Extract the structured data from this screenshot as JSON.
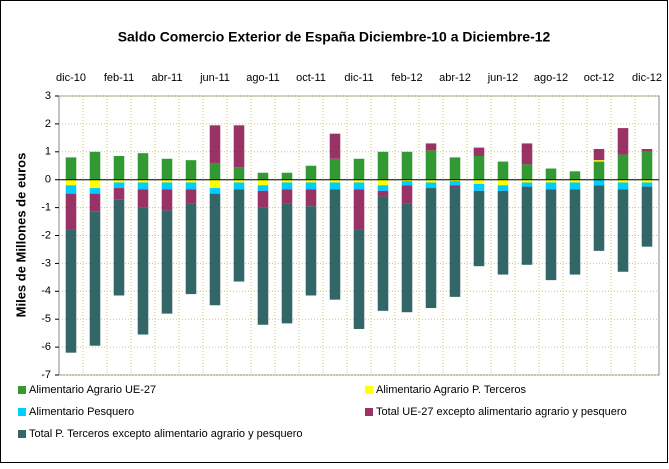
{
  "chart_data": {
    "type": "stacked_bar",
    "title": "Saldo Comercio Exterior de España Diciembre-10 a Diciembre-12",
    "y_label": "Miles de Millones de euros",
    "categories": [
      "dic-10",
      null,
      "feb-11",
      null,
      "abr-11",
      null,
      "jun-11",
      null,
      "ago-11",
      null,
      "oct-11",
      null,
      "dic-11",
      null,
      "feb-12",
      null,
      "abr-12",
      null,
      "jun-12",
      null,
      "ago-12",
      null,
      "oct-12",
      null,
      "dic-12"
    ],
    "series": [
      {
        "name": "Alimentario Agrario UE-27",
        "color": "#339933",
        "values": [
          0.8,
          1.0,
          0.85,
          0.95,
          0.75,
          0.7,
          0.6,
          0.45,
          0.25,
          0.25,
          0.5,
          0.75,
          0.75,
          1.0,
          1.0,
          1.05,
          0.8,
          0.85,
          0.65,
          0.55,
          0.4,
          0.3,
          0.65,
          0.9,
          1.0
        ]
      },
      {
        "name": "Alimentario Agrario P. Terceros",
        "color": "#ffff00",
        "values": [
          -0.2,
          -0.3,
          -0.1,
          -0.1,
          -0.1,
          -0.1,
          -0.3,
          -0.1,
          -0.2,
          -0.1,
          -0.1,
          -0.1,
          -0.1,
          -0.2,
          -0.05,
          -0.1,
          -0.05,
          -0.15,
          -0.2,
          -0.1,
          -0.1,
          -0.1,
          0.05,
          -0.1,
          -0.1
        ]
      },
      {
        "name": "Alimentario Pesquero",
        "color": "#00ccff",
        "values": [
          -0.3,
          -0.2,
          -0.2,
          -0.25,
          -0.25,
          -0.25,
          -0.2,
          -0.25,
          -0.2,
          -0.25,
          -0.25,
          -0.25,
          -0.25,
          -0.2,
          -0.15,
          -0.2,
          -0.15,
          -0.25,
          -0.2,
          -0.15,
          -0.25,
          -0.25,
          -0.2,
          -0.25,
          -0.15
        ]
      },
      {
        "name": "Total UE-27 excepto alimentario agrario y pesquero",
        "color": "#993366",
        "values": [
          -1.3,
          -0.65,
          -0.4,
          -0.65,
          -0.75,
          -0.5,
          1.35,
          1.5,
          -0.6,
          -0.5,
          -0.6,
          0.9,
          -1.45,
          -0.2,
          -0.65,
          0.25,
          -0.1,
          0.3,
          0,
          0.75,
          0,
          0,
          0.4,
          0.95,
          0.1
        ]
      },
      {
        "name": "Total P. Terceros excepto alimentario agrario y pesquero",
        "color": "#336666",
        "values": [
          -4.4,
          -4.8,
          -3.45,
          -4.55,
          -3.7,
          -3.25,
          -4.0,
          -3.3,
          -4.2,
          -4.3,
          -3.2,
          -3.95,
          -3.55,
          -4.1,
          -3.9,
          -4.3,
          -3.9,
          -2.7,
          -3.0,
          -2.8,
          -3.25,
          -3.05,
          -2.35,
          -2.95,
          -2.15
        ]
      }
    ],
    "ylim": [
      -7,
      3
    ],
    "yticks": [
      -7,
      -6,
      -5,
      -4,
      -3,
      -2,
      -1,
      0,
      1,
      2,
      3
    ],
    "grid": true
  }
}
